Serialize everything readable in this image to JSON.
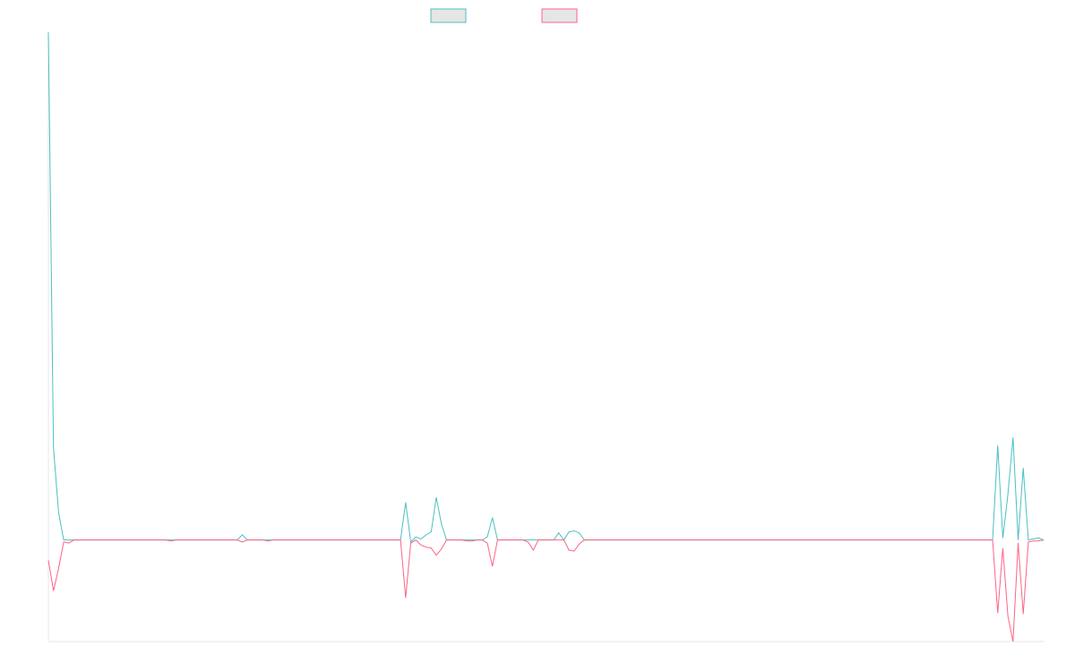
{
  "chart_data": {
    "type": "line",
    "ylim": [
      -1,
      5
    ],
    "series": [
      {
        "color": "#4bc0c0",
        "values": [
          5,
          0.91,
          0.27,
          0,
          0,
          0,
          0,
          0,
          0,
          0,
          0,
          0,
          0,
          0,
          0,
          0,
          0,
          0,
          0,
          0,
          0,
          0,
          0,
          0,
          0,
          0,
          0,
          0,
          0,
          0,
          0,
          0,
          0,
          0,
          0,
          0,
          0,
          0,
          0.05,
          0,
          0,
          0,
          0,
          0,
          0,
          0,
          0,
          0,
          0,
          0,
          0,
          0,
          0,
          0,
          0,
          0,
          0,
          0,
          0,
          0,
          0,
          0,
          0,
          0,
          0,
          0,
          0,
          0,
          0,
          0,
          0.37,
          -0.02,
          0.03,
          0.01,
          0.05,
          0.08,
          0.42,
          0.16,
          0,
          0,
          0,
          0,
          0,
          0,
          0,
          0,
          0.03,
          0.22,
          0,
          0,
          0,
          0,
          0,
          0,
          0,
          0,
          0,
          0,
          0,
          0,
          0.07,
          0,
          0.08,
          0.09,
          0.07,
          0,
          0,
          0,
          0,
          0,
          0,
          0,
          0,
          0,
          0,
          0,
          0,
          0,
          0,
          0,
          0,
          0,
          0,
          0,
          0,
          0,
          0,
          0,
          0,
          0,
          0,
          0,
          0,
          0,
          0,
          0,
          0,
          0,
          0,
          0,
          0,
          0,
          0,
          0,
          0,
          0,
          0,
          0,
          0,
          0,
          0,
          0,
          0,
          0,
          0,
          0,
          0,
          0,
          0,
          0,
          0,
          0,
          0,
          0,
          0,
          0,
          0,
          0,
          0,
          0,
          0,
          0,
          0,
          0,
          0,
          0,
          0,
          0,
          0,
          0,
          0,
          0,
          0,
          0,
          0,
          0,
          0.93,
          0.02,
          0.45,
          1.01,
          0,
          0.71,
          0,
          0.01,
          0.02,
          0
        ]
      },
      {
        "color": "#ff6384",
        "values": [
          -0.2,
          -0.5,
          -0.28,
          -0.02,
          -0.03,
          0,
          0,
          0,
          0,
          0,
          0,
          0,
          0,
          0,
          0,
          0,
          0,
          0,
          0,
          0,
          0,
          0,
          0,
          0,
          -0.01,
          0,
          0,
          0,
          0,
          0,
          0,
          0,
          0,
          0,
          0,
          0,
          0,
          0,
          -0.02,
          0,
          0,
          0,
          0,
          -0.01,
          0,
          0,
          0,
          0,
          0,
          0,
          0,
          0,
          0,
          0,
          0,
          0,
          0,
          0,
          0,
          0,
          0,
          0,
          0,
          0,
          0,
          0,
          0,
          0,
          0,
          0,
          -0.57,
          -0.03,
          0,
          -0.05,
          -0.07,
          -0.08,
          -0.15,
          -0.09,
          0,
          0,
          0,
          0,
          -0.01,
          -0.01,
          0,
          0,
          -0.03,
          -0.26,
          0,
          0,
          0,
          0,
          0,
          0,
          -0.02,
          -0.1,
          0,
          0,
          0,
          0,
          0,
          0,
          -0.1,
          -0.11,
          -0.04,
          0,
          0,
          0,
          0,
          0,
          0,
          0,
          0,
          0,
          0,
          0,
          0,
          0,
          0,
          0,
          0,
          0,
          0,
          0,
          0,
          0,
          0,
          0,
          0,
          0,
          0,
          0,
          0,
          0,
          0,
          0,
          0,
          0,
          0,
          0,
          0,
          0,
          0,
          0,
          0,
          0,
          0,
          0,
          0,
          0,
          0,
          0,
          0,
          0,
          0,
          0,
          0,
          0,
          0,
          0,
          0,
          0,
          0,
          0,
          0,
          0,
          0,
          0,
          0,
          0,
          0,
          0,
          0,
          0,
          0,
          0,
          0,
          0,
          0,
          0,
          0,
          0,
          0,
          0,
          0,
          0,
          -0.72,
          -0.08,
          -0.75,
          -1,
          -0.03,
          -0.73,
          -0.02,
          -0.01,
          -0.01,
          0
        ]
      }
    ]
  }
}
